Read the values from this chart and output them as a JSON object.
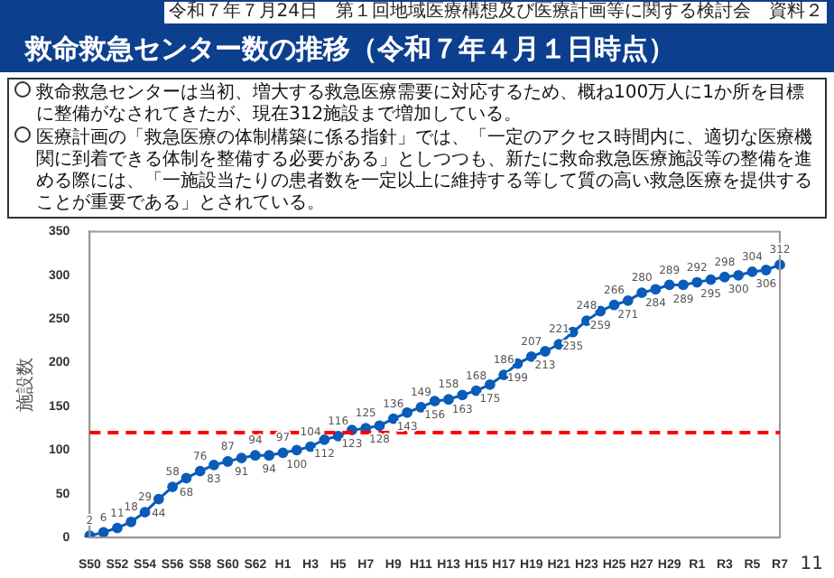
{
  "chart_data": {
    "type": "line",
    "title": "救命救急センター数の推移（令和７年４月１日時点）",
    "ylabel": "施設数",
    "annotations": [
      "令和７年７月24日　第１回地域医療構想及び医療計画等に関する検討会　資料２",
      "救命救急センターは当初、増大する救急医療需要に対応するため、概ね100万人に1か所を目標に整備がなされてきたが、現在312施設まで増加している。",
      "医療計画の「救急医療の体制構築に係る指針」では、「一定のアクセス時間内に、適切な医療機関に到着できる体制を整備する必要がある」としつつも、新たに救命救急医療施設等の整備を進める際には、「一施設当たりの患者数を一定以上に維持する等して質の高い救急医療を提供することが重要である」とされている。",
      "11"
    ],
    "categories": [
      "S50",
      null,
      "S52",
      null,
      "S54",
      null,
      "S56",
      null,
      "S58",
      null,
      "S60",
      null,
      "S62",
      null,
      "H1",
      null,
      "H3",
      null,
      "H5",
      null,
      "H7",
      null,
      "H9",
      null,
      "H11",
      null,
      "H13",
      null,
      "H15",
      null,
      "H17",
      null,
      "H19",
      null,
      "H21",
      null,
      "H23",
      null,
      "H25",
      null,
      "H27",
      null,
      "H29",
      null,
      "R1",
      null,
      "R3",
      null,
      "R5",
      null,
      "R7"
    ],
    "series": [
      {
        "color": "#0a5cb8",
        "values": [
          2,
          6,
          11,
          18,
          29,
          44,
          58,
          68,
          76,
          83,
          87,
          91,
          94,
          94,
          97,
          100,
          104,
          112,
          116,
          123,
          125,
          128,
          136,
          143,
          149,
          156,
          158,
          163,
          168,
          175,
          186,
          199,
          207,
          213,
          221,
          235,
          248,
          259,
          266,
          271,
          280,
          284,
          289,
          289,
          292,
          295,
          298,
          300,
          304,
          306,
          312
        ]
      }
    ],
    "ylim": [
      0,
      350
    ],
    "yticks": [
      0,
      50,
      100,
      150,
      200,
      250,
      300,
      350
    ],
    "ref_lines": [
      {
        "axis": "y",
        "value": 120,
        "color": "#ff0000",
        "line_style": "dashed"
      }
    ],
    "marker": "circle",
    "line_style": "solid",
    "data_labels": true,
    "grid": false,
    "legend": false
  }
}
